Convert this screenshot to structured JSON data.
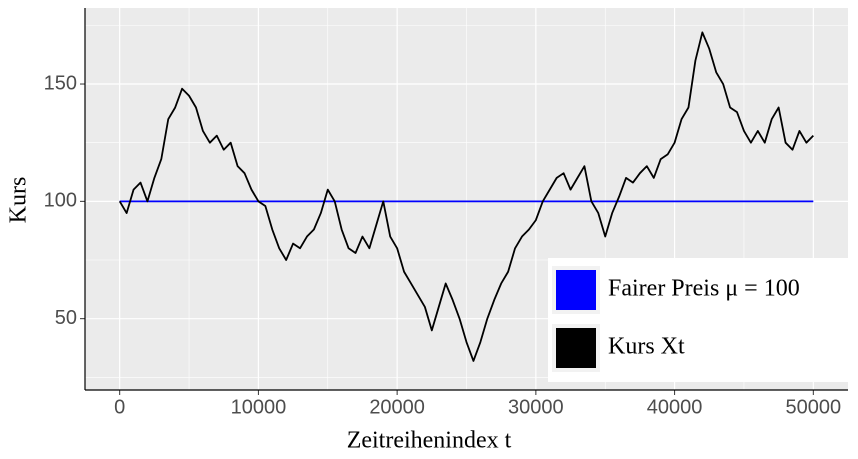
{
  "chart_data": {
    "type": "line",
    "xlabel": "Zeitreihenindex t",
    "ylabel": "Kurs",
    "xlim": [
      -2500,
      52500
    ],
    "xticks": [
      0,
      10000,
      20000,
      30000,
      40000,
      50000
    ],
    "ylim": [
      19.6,
      182.4
    ],
    "yticks": [
      50,
      100,
      150
    ],
    "grid": true,
    "legend": "bottom-right",
    "series": [
      {
        "name": "Fairer Preis μ = 100",
        "color": "#0000ff",
        "x": [
          0,
          50000
        ],
        "values": [
          100,
          100
        ]
      },
      {
        "name": "Kurs Xt",
        "color": "#000000",
        "x": [
          0,
          500,
          1000,
          1500,
          2000,
          2500,
          3000,
          3500,
          4000,
          4500,
          5000,
          5500,
          6000,
          6500,
          7000,
          7500,
          8000,
          8500,
          9000,
          9500,
          10000,
          10500,
          11000,
          11500,
          12000,
          12500,
          13000,
          13500,
          14000,
          14500,
          15000,
          15500,
          16000,
          16500,
          17000,
          17500,
          18000,
          18500,
          19000,
          19500,
          20000,
          20500,
          21000,
          21500,
          22000,
          22500,
          23000,
          23500,
          24000,
          24500,
          25000,
          25500,
          26000,
          26500,
          27000,
          27500,
          28000,
          28500,
          29000,
          29500,
          30000,
          30500,
          31000,
          31500,
          32000,
          32500,
          33000,
          33500,
          34000,
          34500,
          35000,
          35500,
          36000,
          36500,
          37000,
          37500,
          38000,
          38500,
          39000,
          39500,
          40000,
          40500,
          41000,
          41500,
          42000,
          42500,
          43000,
          43500,
          44000,
          44500,
          45000,
          45500,
          46000,
          46500,
          47000,
          47500,
          48000,
          48500,
          49000,
          49500,
          50000
        ],
        "values": [
          100,
          95,
          105,
          108,
          100,
          110,
          118,
          135,
          140,
          148,
          145,
          140,
          130,
          125,
          128,
          122,
          125,
          115,
          112,
          105,
          100,
          98,
          88,
          80,
          75,
          82,
          80,
          85,
          88,
          95,
          105,
          100,
          88,
          80,
          78,
          85,
          80,
          90,
          100,
          85,
          80,
          70,
          65,
          60,
          55,
          45,
          55,
          65,
          58,
          50,
          40,
          32,
          40,
          50,
          58,
          65,
          70,
          80,
          85,
          88,
          92,
          100,
          105,
          110,
          112,
          105,
          110,
          115,
          100,
          95,
          85,
          95,
          102,
          110,
          108,
          112,
          115,
          110,
          118,
          120,
          125,
          135,
          140,
          160,
          172,
          165,
          155,
          150,
          140,
          138,
          130,
          125,
          130,
          125,
          135,
          140,
          125,
          122,
          130,
          125,
          128
        ]
      }
    ]
  }
}
